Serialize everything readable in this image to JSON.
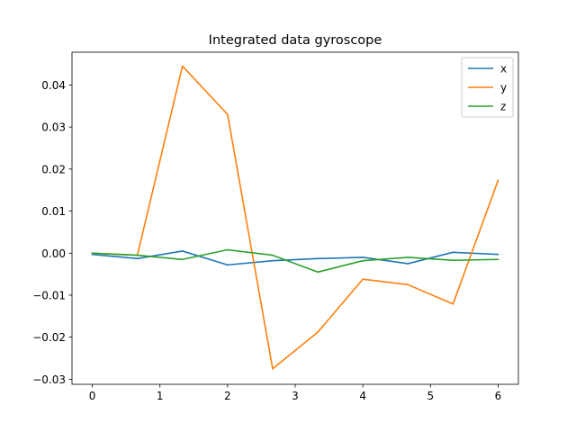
{
  "chart_data": {
    "type": "line",
    "title": "Integrated data gyroscope",
    "xlabel": "",
    "ylabel": "",
    "x": [
      0,
      0.6667,
      1.3333,
      2.0,
      2.6667,
      3.3333,
      4.0,
      4.6667,
      5.3333,
      6.0
    ],
    "xlim": [
      -0.3,
      6.3
    ],
    "ylim": [
      -0.0312,
      0.0478
    ],
    "xticks": [
      0,
      1,
      2,
      3,
      4,
      5,
      6
    ],
    "xtick_labels": [
      "0",
      "1",
      "2",
      "3",
      "4",
      "5",
      "6"
    ],
    "yticks": [
      -0.03,
      -0.02,
      -0.01,
      0.0,
      0.01,
      0.02,
      0.03,
      0.04
    ],
    "ytick_labels": [
      "−0.03",
      "−0.02",
      "−0.01",
      "0.00",
      "0.01",
      "0.02",
      "0.03",
      "0.04"
    ],
    "grid": false,
    "legend_position": "top-right",
    "series": [
      {
        "name": "x",
        "color": "#1f77b4",
        "values": [
          -0.0003,
          -0.0013,
          0.0005,
          -0.0028,
          -0.0018,
          -0.0013,
          -0.001,
          -0.0025,
          0.0002,
          -0.0003
        ]
      },
      {
        "name": "y",
        "color": "#ff7f0e",
        "values": [
          0.0,
          -0.0005,
          0.0445,
          0.033,
          -0.0275,
          -0.0188,
          -0.0062,
          -0.0075,
          -0.0121,
          0.0173
        ]
      },
      {
        "name": "z",
        "color": "#2ca02c",
        "values": [
          0.0,
          -0.0005,
          -0.0015,
          0.0008,
          -0.0005,
          -0.0045,
          -0.0018,
          -0.001,
          -0.0017,
          -0.0015
        ]
      }
    ]
  }
}
